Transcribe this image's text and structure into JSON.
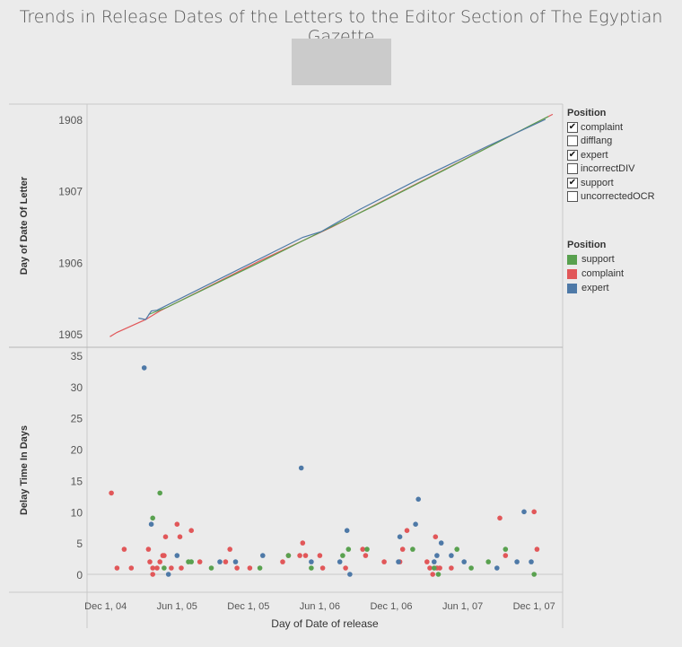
{
  "title": "Trends in Release Dates of the Letters to the Editor Section of The Egyptian Gazette",
  "filter_legend": {
    "title": "Position",
    "items": [
      {
        "label": "complaint",
        "checked": true
      },
      {
        "label": "difflang",
        "checked": false
      },
      {
        "label": "expert",
        "checked": true
      },
      {
        "label": "incorrectDIV",
        "checked": false
      },
      {
        "label": "support",
        "checked": true
      },
      {
        "label": "uncorrectedOCR",
        "checked": false
      }
    ]
  },
  "color_legend": {
    "title": "Position",
    "items": [
      {
        "label": "support",
        "color": "#59a14f"
      },
      {
        "label": "complaint",
        "color": "#e15759"
      },
      {
        "label": "expert",
        "color": "#4e79a7"
      }
    ]
  },
  "chart_data": [
    {
      "type": "line",
      "ylabel": "Day of Date Of Letter",
      "yticks": [
        "1905",
        "1906",
        "1907",
        "1908"
      ],
      "ylim": [
        1904.96,
        1908.1
      ],
      "series": [
        {
          "name": "complaint",
          "color": "#e15759",
          "points": [
            [
              1904.95,
              1904.96
            ],
            [
              1905.0,
              1905.02
            ],
            [
              1905.2,
              1905.2
            ],
            [
              1905.3,
              1905.32
            ],
            [
              1905.6,
              1905.62
            ],
            [
              1906.0,
              1906.02
            ],
            [
              1906.5,
              1906.49
            ],
            [
              1907.0,
              1907.0
            ],
            [
              1907.5,
              1907.51
            ],
            [
              1908.05,
              1908.07
            ]
          ]
        },
        {
          "name": "support",
          "color": "#59a14f",
          "points": [
            [
              1905.22,
              1905.27
            ],
            [
              1905.35,
              1905.37
            ],
            [
              1906.0,
              1906.0
            ],
            [
              1906.3,
              1906.3
            ],
            [
              1906.8,
              1906.79
            ],
            [
              1907.3,
              1907.3
            ],
            [
              1907.9,
              1907.92
            ],
            [
              1908.02,
              1908.04
            ]
          ]
        },
        {
          "name": "expert",
          "color": "#4e79a7",
          "points": [
            [
              1905.15,
              1905.22
            ],
            [
              1905.2,
              1905.2
            ],
            [
              1905.24,
              1905.32
            ],
            [
              1905.28,
              1905.33
            ],
            [
              1906.3,
              1906.35
            ],
            [
              1906.43,
              1906.43
            ],
            [
              1906.7,
              1906.74
            ],
            [
              1907.1,
              1907.15
            ],
            [
              1907.6,
              1907.63
            ],
            [
              1908.0,
              1908.0
            ]
          ]
        }
      ]
    },
    {
      "type": "scatter",
      "ylabel": "Delay Time In Days",
      "xlabel": "Day of Date of release",
      "ylim": [
        -1.5,
        36
      ],
      "yticks": [
        "0",
        "5",
        "10",
        "15",
        "20",
        "25",
        "30",
        "35"
      ],
      "xticks": [
        "Dec 1, 04",
        "Jun 1, 05",
        "Dec 1, 05",
        "Jun 1, 06",
        "Dec 1, 06",
        "Jun 1, 07",
        "Dec 1, 07"
      ],
      "xlim": [
        1904.79,
        1908.12
      ],
      "series": [
        {
          "name": "complaint",
          "color": "#e15759",
          "points": [
            [
              1904.96,
              13
            ],
            [
              1905.0,
              1
            ],
            [
              1905.05,
              4
            ],
            [
              1905.1,
              1
            ],
            [
              1905.22,
              4
            ],
            [
              1905.23,
              2
            ],
            [
              1905.25,
              1
            ],
            [
              1905.25,
              0
            ],
            [
              1905.28,
              1
            ],
            [
              1905.3,
              2
            ],
            [
              1905.32,
              3
            ],
            [
              1905.33,
              3
            ],
            [
              1905.34,
              6
            ],
            [
              1905.38,
              1
            ],
            [
              1905.42,
              8
            ],
            [
              1905.44,
              6
            ],
            [
              1905.45,
              1
            ],
            [
              1905.52,
              7
            ],
            [
              1905.58,
              2
            ],
            [
              1905.79,
              4
            ],
            [
              1905.76,
              2
            ],
            [
              1905.84,
              1
            ],
            [
              1905.93,
              1
            ],
            [
              1906.16,
              2
            ],
            [
              1906.2,
              3
            ],
            [
              1906.28,
              3
            ],
            [
              1906.3,
              5
            ],
            [
              1906.32,
              3
            ],
            [
              1906.42,
              3
            ],
            [
              1906.44,
              1
            ],
            [
              1906.6,
              1
            ],
            [
              1906.72,
              4
            ],
            [
              1906.74,
              3
            ],
            [
              1906.87,
              2
            ],
            [
              1906.98,
              2
            ],
            [
              1907.0,
              4
            ],
            [
              1907.03,
              7
            ],
            [
              1907.17,
              2
            ],
            [
              1907.19,
              1
            ],
            [
              1907.21,
              0
            ],
            [
              1907.23,
              6
            ],
            [
              1907.24,
              1
            ],
            [
              1907.26,
              1
            ],
            [
              1907.34,
              1
            ],
            [
              1907.68,
              9
            ],
            [
              1907.72,
              3
            ],
            [
              1907.92,
              10
            ],
            [
              1907.94,
              4
            ]
          ]
        },
        {
          "name": "support",
          "color": "#59a14f",
          "points": [
            [
              1905.25,
              9
            ],
            [
              1905.3,
              13
            ],
            [
              1905.33,
              1
            ],
            [
              1905.5,
              2
            ],
            [
              1905.52,
              2
            ],
            [
              1905.66,
              1
            ],
            [
              1906.0,
              1
            ],
            [
              1906.2,
              3
            ],
            [
              1906.36,
              1
            ],
            [
              1906.58,
              3
            ],
            [
              1906.62,
              4
            ],
            [
              1906.75,
              4
            ],
            [
              1907.07,
              4
            ],
            [
              1907.22,
              1
            ],
            [
              1907.25,
              0
            ],
            [
              1907.38,
              4
            ],
            [
              1907.48,
              1
            ],
            [
              1907.6,
              2
            ],
            [
              1907.72,
              4
            ],
            [
              1907.92,
              0
            ]
          ]
        },
        {
          "name": "expert",
          "color": "#4e79a7",
          "points": [
            [
              1905.19,
              33
            ],
            [
              1905.24,
              8
            ],
            [
              1905.36,
              0
            ],
            [
              1905.42,
              3
            ],
            [
              1905.72,
              2
            ],
            [
              1905.83,
              2
            ],
            [
              1906.02,
              3
            ],
            [
              1906.29,
              17
            ],
            [
              1906.36,
              2
            ],
            [
              1906.56,
              2
            ],
            [
              1906.61,
              7
            ],
            [
              1906.63,
              0
            ],
            [
              1906.97,
              2
            ],
            [
              1906.98,
              6
            ],
            [
              1907.09,
              8
            ],
            [
              1907.11,
              12
            ],
            [
              1907.22,
              2
            ],
            [
              1907.24,
              3
            ],
            [
              1907.27,
              5
            ],
            [
              1907.34,
              3
            ],
            [
              1907.43,
              2
            ],
            [
              1907.66,
              1
            ],
            [
              1907.8,
              2
            ],
            [
              1907.85,
              10
            ],
            [
              1907.9,
              2
            ]
          ]
        }
      ]
    }
  ]
}
